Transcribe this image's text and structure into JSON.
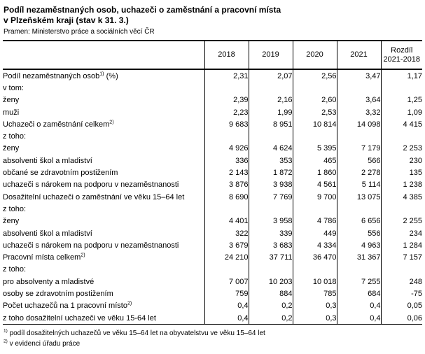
{
  "title": {
    "line1": "Podíl nezaměstnaných osob, uchazeči o zaměstnání a pracovní místa",
    "line2": "v Plzeňském kraji (stav k 31. 3.)"
  },
  "source": "Pramen: Ministerstvo práce a sociálních věcí ČR",
  "table": {
    "year_columns": [
      "2018",
      "2019",
      "2020",
      "2021"
    ],
    "diff_column": {
      "line1": "Rozdíl",
      "line2": "2021-2018"
    },
    "rows": [
      {
        "label": "Podíl nezaměstnaných osob",
        "sup": "1)",
        "suffix": " (%)",
        "indent": 0,
        "bold": true,
        "values": [
          "2,31",
          "2,07",
          "2,56",
          "3,47",
          "1,17"
        ]
      },
      {
        "label": "v tom:",
        "indent": 1,
        "values": [
          "",
          "",
          "",
          "",
          ""
        ]
      },
      {
        "label": "ženy",
        "indent": 2,
        "values": [
          "2,39",
          "2,16",
          "2,60",
          "3,64",
          "1,25"
        ]
      },
      {
        "label": "muži",
        "indent": 2,
        "values": [
          "2,23",
          "1,99",
          "2,53",
          "3,32",
          "1,09"
        ]
      },
      {
        "label": "Uchazeči o zaměstnání celkem",
        "sup": "2)",
        "indent": 0,
        "bold": true,
        "values": [
          "9 683",
          "8 951",
          "10 814",
          "14 098",
          "4 415"
        ]
      },
      {
        "label": "z toho:",
        "indent": 1,
        "values": [
          "",
          "",
          "",
          "",
          ""
        ]
      },
      {
        "label": "ženy",
        "indent": 2,
        "values": [
          "4 926",
          "4 624",
          "5 395",
          "7 179",
          "2 253"
        ]
      },
      {
        "label": "absolventi škol a mladiství",
        "indent": 2,
        "values": [
          "336",
          "353",
          "465",
          "566",
          "230"
        ]
      },
      {
        "label": "občané se zdravotním postižením",
        "indent": 2,
        "values": [
          "2 143",
          "1 872",
          "1 860",
          "2 278",
          "135"
        ]
      },
      {
        "label": "uchazeči s nárokem na podporu v nezaměstnanosti",
        "indent": 2,
        "values": [
          "3 876",
          "3 938",
          "4 561",
          "5 114",
          "1 238"
        ]
      },
      {
        "label": "Dosažitelní uchazeči o zaměstnání ve věku 15–64 let",
        "indent": 0,
        "bold": true,
        "values": [
          "8 690",
          "7 769",
          "9 700",
          "13 075",
          "4 385"
        ]
      },
      {
        "label": "z toho:",
        "indent": 1,
        "values": [
          "",
          "",
          "",
          "",
          ""
        ]
      },
      {
        "label": "ženy",
        "indent": 2,
        "values": [
          "4 401",
          "3 958",
          "4 786",
          "6 656",
          "2 255"
        ]
      },
      {
        "label": "absolventi škol a mladiství",
        "indent": 2,
        "values": [
          "322",
          "339",
          "449",
          "556",
          "234"
        ]
      },
      {
        "label": "uchazeči s nárokem na podporu v nezaměstnanosti",
        "indent": 2,
        "values": [
          "3 679",
          "3 683",
          "4 334",
          "4 963",
          "1 284"
        ]
      },
      {
        "label": "Pracovní místa celkem",
        "sup": "2)",
        "indent": 0,
        "bold": true,
        "values": [
          "24 210",
          "37 711",
          "36 470",
          "31 367",
          "7 157"
        ],
        "bold_values": [
          true,
          true,
          true,
          true,
          false
        ]
      },
      {
        "label": "z toho:",
        "indent": 1,
        "values": [
          "",
          "",
          "",
          "",
          ""
        ]
      },
      {
        "label": "pro absolventy a mladistvé",
        "indent": 2,
        "values": [
          "7 007",
          "10 203",
          "10 018",
          "7 255",
          "248"
        ],
        "bold_values": [
          false,
          false,
          false,
          false,
          true
        ]
      },
      {
        "label": "osoby se zdravotním postižením",
        "indent": 2,
        "values": [
          "759",
          "884",
          "785",
          "684",
          "-75"
        ]
      },
      {
        "label": "Počet uchazečů na 1 pracovní místo",
        "sup": "2)",
        "indent": 0,
        "bold": true,
        "values": [
          "0,4",
          "0,2",
          "0,3",
          "0,4",
          "0,05"
        ]
      },
      {
        "label": "z toho dosažitelní uchazeči ve věku 15-64 let",
        "indent": 2,
        "values": [
          "0,4",
          "0,2",
          "0,3",
          "0,4",
          "0,06"
        ]
      }
    ]
  },
  "footnotes": [
    {
      "marker": "1)",
      "text": "podíl dosažitelných uchazečů ve věku 15–64 let na obyvatelstvu ve věku 15–64 let"
    },
    {
      "marker": "2)",
      "text": "v evidenci úřadu práce"
    }
  ]
}
